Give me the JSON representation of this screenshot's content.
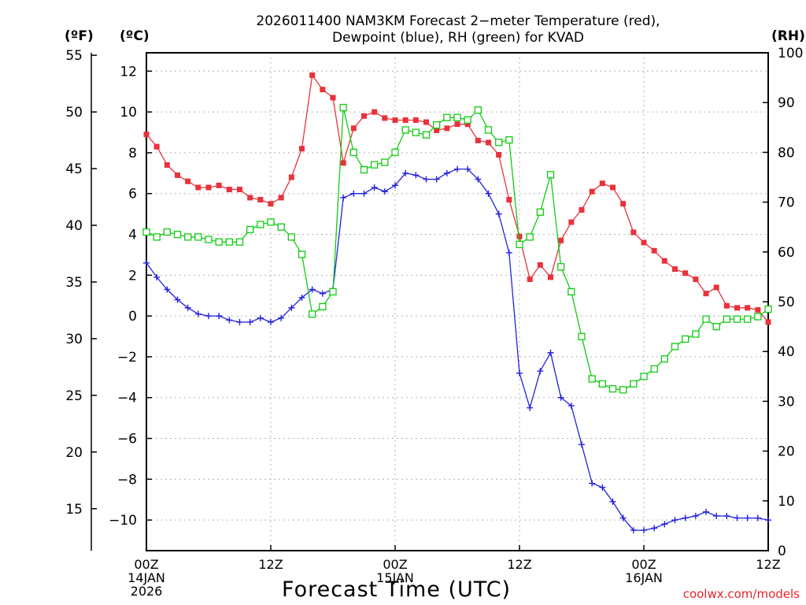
{
  "chart_data": {
    "type": "line",
    "title_line1": "2026011400 NAM3KM Forecast 2−meter Temperature (red),",
    "title_line2": "Dewpoint (blue), RH (green) for KVAD",
    "axis_headers": {
      "left_f": "(ºF)",
      "left_c": "(ºC)",
      "right_rh": "(RH)"
    },
    "xlabel": "Forecast Time (UTC)",
    "credit": "coolwx.com/models",
    "x_unit": "forecast hour",
    "xlim": [
      0,
      60
    ],
    "x_ticks": [
      {
        "hour": 0,
        "lines": [
          "00Z",
          "14JAN",
          "2026"
        ]
      },
      {
        "hour": 12,
        "lines": [
          "12Z"
        ]
      },
      {
        "hour": 24,
        "lines": [
          "00Z",
          "15JAN"
        ]
      },
      {
        "hour": 36,
        "lines": [
          "12Z"
        ]
      },
      {
        "hour": 48,
        "lines": [
          "00Z",
          "16JAN"
        ]
      },
      {
        "hour": 60,
        "lines": [
          "12Z"
        ]
      }
    ],
    "y_celsius": {
      "lim": [
        -11.5,
        12.9
      ],
      "ticks": [
        -10,
        -8,
        -6,
        -4,
        -2,
        0,
        2,
        4,
        6,
        8,
        10,
        12
      ],
      "tick_labels": [
        "−10",
        "−8",
        "−6",
        "−4",
        "−2",
        "0",
        "2",
        "4",
        "6",
        "8",
        "10",
        "12"
      ]
    },
    "y_fahrenheit": {
      "ticks": [
        15,
        20,
        25,
        30,
        35,
        40,
        45,
        50,
        55
      ],
      "tick_labels": [
        "15",
        "20",
        "25",
        "30",
        "35",
        "40",
        "45",
        "50",
        "55"
      ]
    },
    "y_rh": {
      "lim": [
        0,
        100
      ],
      "ticks": [
        0,
        10,
        20,
        30,
        40,
        50,
        60,
        70,
        80,
        90,
        100
      ],
      "tick_labels": [
        "0",
        "10",
        "20",
        "30",
        "40",
        "50",
        "60",
        "70",
        "80",
        "90",
        "100"
      ]
    },
    "grid": true,
    "series": [
      {
        "name": "2-meter Temperature",
        "axis": "celsius",
        "color": "#e8323c",
        "marker": "filled-square",
        "values": [
          8.9,
          8.3,
          7.4,
          6.9,
          6.6,
          6.3,
          6.3,
          6.4,
          6.2,
          6.2,
          5.8,
          5.7,
          5.5,
          5.8,
          6.8,
          8.2,
          11.8,
          11.1,
          10.7,
          7.5,
          9.2,
          9.8,
          10.0,
          9.7,
          9.6,
          9.6,
          9.6,
          9.5,
          9.1,
          9.2,
          9.4,
          9.4,
          8.6,
          8.5,
          7.9,
          5.7,
          3.9,
          1.8,
          2.5,
          1.9,
          3.7,
          4.6,
          5.2,
          6.1,
          6.5,
          6.3,
          5.5,
          4.1,
          3.6,
          3.2,
          2.7,
          2.3,
          2.1,
          1.8,
          1.1,
          1.4,
          0.5,
          0.4,
          0.4,
          0.3,
          -0.3
        ]
      },
      {
        "name": "Dewpoint",
        "axis": "celsius",
        "color": "#2222dd",
        "marker": "plus",
        "values": [
          2.6,
          1.9,
          1.3,
          0.8,
          0.4,
          0.1,
          0.0,
          0.0,
          -0.2,
          -0.3,
          -0.3,
          -0.1,
          -0.3,
          -0.1,
          0.4,
          0.9,
          1.3,
          1.1,
          1.3,
          5.8,
          6.0,
          6.0,
          6.3,
          6.1,
          6.4,
          7.0,
          6.9,
          6.7,
          6.7,
          7.0,
          7.2,
          7.2,
          6.7,
          6.0,
          5.0,
          3.1,
          -2.8,
          -4.5,
          -2.7,
          -1.8,
          -4.0,
          -4.4,
          -6.3,
          -8.2,
          -8.4,
          -9.1,
          -9.9,
          -10.5,
          -10.5,
          -10.4,
          -10.2,
          -10.0,
          -9.9,
          -9.8,
          -9.6,
          -9.8,
          -9.8,
          -9.9,
          -9.9,
          -9.9,
          -10.0
        ]
      },
      {
        "name": "RH",
        "axis": "rh",
        "color": "#11cc11",
        "marker": "open-square",
        "values": [
          64,
          63,
          64,
          63.5,
          63,
          63,
          62.5,
          62,
          62,
          62,
          64.5,
          65.5,
          66,
          65,
          63,
          59.5,
          47.5,
          49,
          52,
          89,
          80,
          76.5,
          77.5,
          78,
          80,
          84.5,
          84,
          83.5,
          85.5,
          87,
          87,
          86.5,
          88.5,
          84.5,
          82,
          82.5,
          61.5,
          63,
          68,
          75.5,
          57,
          52,
          43,
          34.5,
          33.5,
          32.5,
          32.3,
          33.5,
          35,
          36.5,
          38.5,
          41,
          42.5,
          43.5,
          46.5,
          45,
          46.5,
          46.5,
          46.5,
          47,
          48.5
        ]
      }
    ]
  }
}
